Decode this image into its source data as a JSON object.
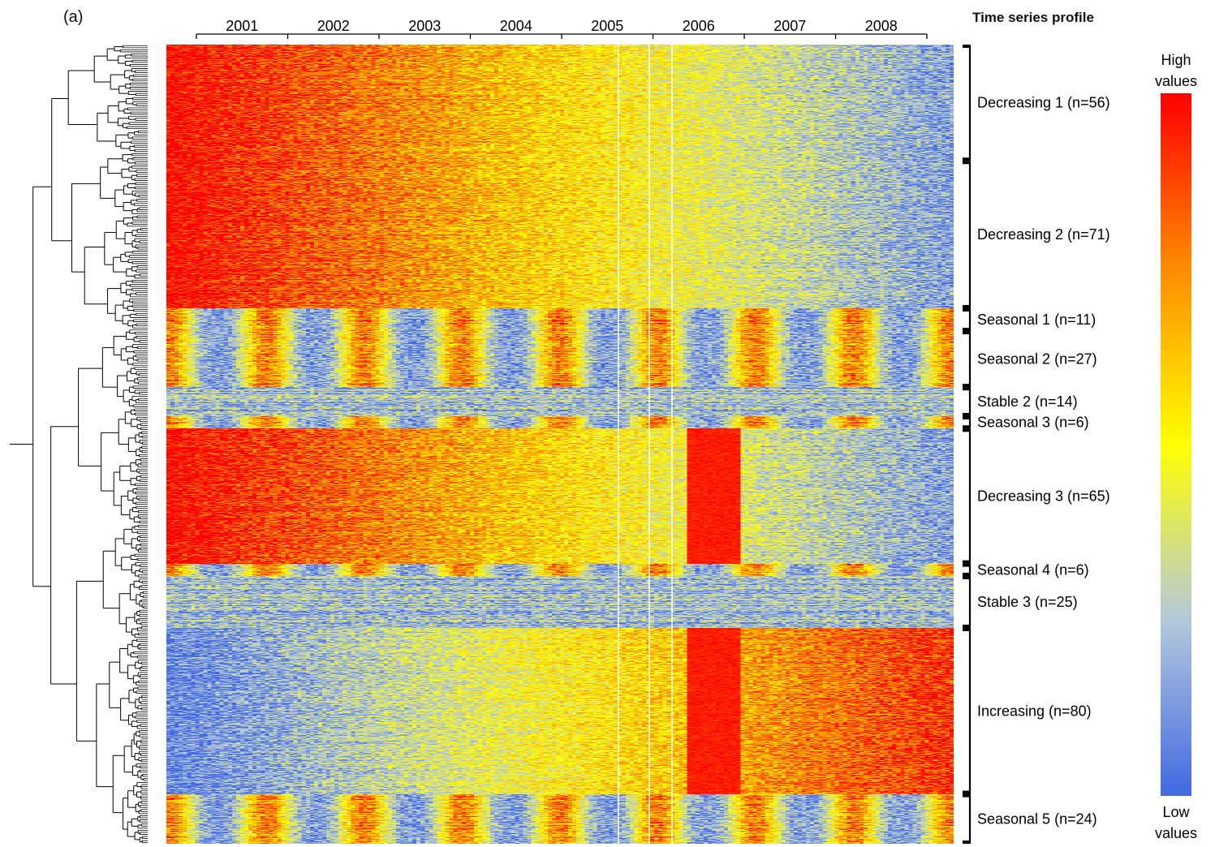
{
  "panel_label": "(a)",
  "chart_data": {
    "type": "heatmap",
    "title": "Time series profile",
    "x_tick_labels": [
      "2001",
      "2002",
      "2003",
      "2004",
      "2005",
      "2006",
      "2007",
      "2008"
    ],
    "clusters": [
      {
        "label": "Decreasing 1 (n=56)",
        "name": "Decreasing 1",
        "n": 56,
        "profile": "decreasing"
      },
      {
        "label": "Decreasing 2 (n=71)",
        "name": "Decreasing 2",
        "n": 71,
        "profile": "decreasing"
      },
      {
        "label": "Seasonal 1 (n=11)",
        "name": "Seasonal 1",
        "n": 11,
        "profile": "seasonal"
      },
      {
        "label": "Seasonal 2 (n=27)",
        "name": "Seasonal 2",
        "n": 27,
        "profile": "seasonal"
      },
      {
        "label": "Stable 2 (n=14)",
        "name": "Stable 2",
        "n": 14,
        "profile": "stable"
      },
      {
        "label": "Seasonal 3 (n=6)",
        "name": "Seasonal 3",
        "n": 6,
        "profile": "seasonal"
      },
      {
        "label": "Decreasing 3 (n=65)",
        "name": "Decreasing 3",
        "n": 65,
        "profile": "decreasing"
      },
      {
        "label": "Seasonal 4 (n=6)",
        "name": "Seasonal 4",
        "n": 6,
        "profile": "seasonal"
      },
      {
        "label": "Stable 3 (n=25)",
        "name": "Stable 3",
        "n": 25,
        "profile": "stable"
      },
      {
        "label": "Increasing (n=80)",
        "name": "Increasing",
        "n": 80,
        "profile": "increasing"
      },
      {
        "label": "Seasonal 5 (n=24)",
        "name": "Seasonal 5",
        "n": 24,
        "profile": "seasonal"
      }
    ],
    "colorbar": {
      "high_label": [
        "High",
        "values"
      ],
      "low_label": [
        "Low",
        "values"
      ],
      "colors": [
        "#4169e1",
        "#b4c8dc",
        "#ffff00",
        "#ff8c00",
        "#ff0000"
      ]
    }
  }
}
